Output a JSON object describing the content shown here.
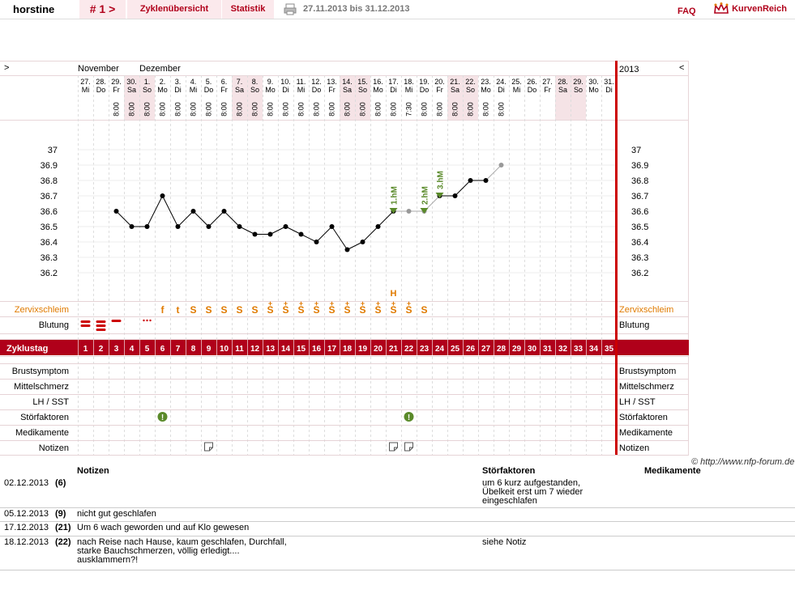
{
  "topbar": {
    "user": "horstine",
    "cycle": "# 1 >",
    "overview": "Zyklenübersicht",
    "stats": "Statistik",
    "range": "27.11.2013 bis 31.12.2013",
    "faq": "FAQ",
    "logo": "KurvenReich"
  },
  "chart_data": {
    "type": "line",
    "months": [
      {
        "label": "November",
        "col": 0
      },
      {
        "label": "Dezember",
        "col": 4
      }
    ],
    "year": "2013",
    "nav_left": ">",
    "nav_right": "<",
    "days": [
      {
        "d": "27.",
        "w": "Mi"
      },
      {
        "d": "28.",
        "w": "Do"
      },
      {
        "d": "29.",
        "w": "Fr"
      },
      {
        "d": "30.",
        "w": "Sa"
      },
      {
        "d": "1.",
        "w": "So"
      },
      {
        "d": "2.",
        "w": "Mo"
      },
      {
        "d": "3.",
        "w": "Di"
      },
      {
        "d": "4.",
        "w": "Mi"
      },
      {
        "d": "5.",
        "w": "Do"
      },
      {
        "d": "6.",
        "w": "Fr"
      },
      {
        "d": "7.",
        "w": "Sa"
      },
      {
        "d": "8.",
        "w": "So"
      },
      {
        "d": "9.",
        "w": "Mo"
      },
      {
        "d": "10.",
        "w": "Di"
      },
      {
        "d": "11.",
        "w": "Mi"
      },
      {
        "d": "12.",
        "w": "Do"
      },
      {
        "d": "13.",
        "w": "Fr"
      },
      {
        "d": "14.",
        "w": "Sa"
      },
      {
        "d": "15.",
        "w": "So"
      },
      {
        "d": "16.",
        "w": "Mo"
      },
      {
        "d": "17.",
        "w": "Di"
      },
      {
        "d": "18.",
        "w": "Mi"
      },
      {
        "d": "19.",
        "w": "Do"
      },
      {
        "d": "20.",
        "w": "Fr"
      },
      {
        "d": "21.",
        "w": "Sa"
      },
      {
        "d": "22.",
        "w": "So"
      },
      {
        "d": "23.",
        "w": "Mo"
      },
      {
        "d": "24.",
        "w": "Di"
      },
      {
        "d": "25.",
        "w": "Mi"
      },
      {
        "d": "26.",
        "w": "Do"
      },
      {
        "d": "27.",
        "w": "Fr"
      },
      {
        "d": "28.",
        "w": "Sa"
      },
      {
        "d": "29.",
        "w": "So"
      },
      {
        "d": "30.",
        "w": "Mo"
      },
      {
        "d": "31.",
        "w": "Di"
      }
    ],
    "times": [
      "",
      "",
      "8:00",
      "8:00",
      "8:00",
      "8:00",
      "8:00",
      "8:00",
      "8:00",
      "8:00",
      "8:00",
      "8:00",
      "8:00",
      "8:00",
      "8:00",
      "8:00",
      "8:00",
      "8:00",
      "8:00",
      "8:00",
      "8:00",
      "7:30",
      "8:00",
      "8:00",
      "8:00",
      "8:00",
      "8:00",
      "8:00",
      "",
      "",
      "",
      "",
      "",
      "",
      ""
    ],
    "y_ticks": [
      "37",
      "36.9",
      "36.8",
      "36.7",
      "36.6",
      "36.5",
      "36.4",
      "36.3",
      "36.2"
    ],
    "ylim": [
      36.1,
      37.1
    ],
    "temps": [
      null,
      null,
      36.6,
      36.5,
      36.5,
      36.7,
      36.5,
      36.6,
      36.5,
      36.6,
      36.5,
      36.45,
      36.45,
      36.5,
      36.45,
      36.4,
      36.5,
      36.35,
      36.4,
      36.5,
      36.6,
      36.6,
      36.6,
      36.7,
      36.7,
      36.8,
      36.8,
      36.9,
      null,
      null,
      null,
      null,
      null,
      null,
      null
    ],
    "excluded": [
      21,
      22,
      27
    ],
    "hm_labels": [
      {
        "col": 20,
        "label": "1.hM"
      },
      {
        "col": 22,
        "label": "2.hM"
      },
      {
        "col": 23,
        "label": "3.hM"
      }
    ],
    "h_marker": {
      "col": 20,
      "label": "H"
    },
    "rows": {
      "cervix": "Zervixschleim",
      "bleeding": "Blutung",
      "cycleday": "Zyklustag",
      "breast": "Brustsymptom",
      "midpain": "Mittelschmerz",
      "lh": "LH / SST",
      "disturb": "Störfaktoren",
      "meds": "Medikamente",
      "notes": "Notizen"
    },
    "cervix": [
      "",
      "",
      "",
      "",
      "",
      "f",
      "t",
      "S",
      "S",
      "S",
      "S",
      "S",
      "S+",
      "S+",
      "S+",
      "S+",
      "S+",
      "S+",
      "S+",
      "S+",
      "S+",
      "S+",
      "S",
      "",
      "",
      "",
      "",
      "",
      "",
      "",
      "",
      "",
      "",
      "",
      ""
    ],
    "bleeding": [
      "heavy",
      "heavy",
      "medium",
      "",
      "light",
      "",
      "",
      "",
      "",
      "",
      "",
      "",
      "",
      "",
      "",
      "",
      "",
      "",
      "",
      "",
      "",
      "",
      "",
      "",
      "",
      "",
      "",
      "",
      "",
      "",
      "",
      "",
      "",
      "",
      ""
    ],
    "disturb_cols": [
      5,
      21
    ],
    "note_cols": [
      8,
      20,
      21
    ],
    "cycle_days": [
      "1",
      "2",
      "3",
      "4",
      "5",
      "6",
      "7",
      "8",
      "9",
      "10",
      "11",
      "12",
      "13",
      "14",
      "15",
      "16",
      "17",
      "18",
      "19",
      "20",
      "21",
      "22",
      "23",
      "24",
      "25",
      "26",
      "27",
      "28",
      "29",
      "30",
      "31",
      "32",
      "33",
      "34",
      "35"
    ]
  },
  "copyright": "© http://www.nfp-forum.de",
  "notes_table": {
    "headers": {
      "notes": "Notizen",
      "disturb": "Störfaktoren",
      "meds": "Medikamente"
    },
    "rows": [
      {
        "date": "02.12.2013",
        "day": "(6)",
        "note": "",
        "disturb": "um 6 kurz aufgestanden,\nÜbelkeit erst um 7 wieder\neingeschlafen",
        "meds": ""
      },
      {
        "date": "05.12.2013",
        "day": "(9)",
        "note": "nicht gut geschlafen",
        "disturb": "",
        "meds": ""
      },
      {
        "date": "17.12.2013",
        "day": "(21)",
        "note": "Um 6 wach geworden und auf Klo gewesen",
        "disturb": "",
        "meds": ""
      },
      {
        "date": "18.12.2013",
        "day": "(22)",
        "note": "nach Reise nach Hause, kaum geschlafen, Durchfall,\nstarke Bauchschmerzen, völlig erledigt....\nausklammern?!",
        "disturb": "siehe Notiz",
        "meds": ""
      }
    ]
  },
  "colors": {
    "accent": "#b0001a",
    "cervix": "#e07a00",
    "green": "#5a8a2a",
    "weekend": "#f5e3e6",
    "grid": "#f9f2f3"
  }
}
